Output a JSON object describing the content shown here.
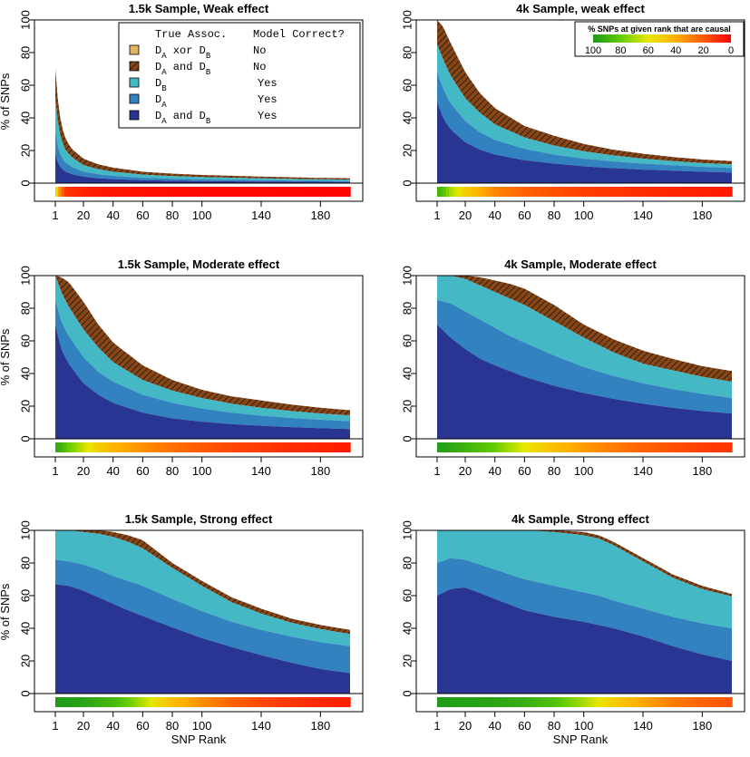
{
  "chart_data": {
    "type": "area",
    "colors": {
      "xor_no": "#e3b461",
      "and_no": "#8b4513",
      "b_yes": "#45b8c6",
      "a_yes": "#3282c0",
      "ab_yes": "#283593",
      "hatch": "#222222"
    },
    "legend": {
      "header_assoc": "True Assoc.",
      "header_correct": "Model Correct?",
      "entries": [
        {
          "key": "xor_no",
          "assoc_parts": [
            "D",
            "A",
            " xor ",
            "D",
            "B"
          ],
          "correct": "No"
        },
        {
          "key": "and_no",
          "assoc_parts": [
            "D",
            "A",
            " and ",
            "D",
            "B"
          ],
          "correct": "No"
        },
        {
          "key": "b_yes",
          "assoc_parts": [
            "D",
            "B"
          ],
          "correct": "Yes"
        },
        {
          "key": "a_yes",
          "assoc_parts": [
            "D",
            "A"
          ],
          "correct": "Yes"
        },
        {
          "key": "ab_yes",
          "assoc_parts": [
            "D",
            "A",
            " and ",
            "D",
            "B"
          ],
          "correct": "Yes"
        }
      ]
    },
    "colorbar": {
      "title": "% SNPs at given rank that are causal",
      "ticks": [
        "100",
        "80",
        "60",
        "40",
        "20",
        "0"
      ]
    },
    "x_ticks": [
      1,
      20,
      40,
      60,
      80,
      100,
      140,
      180
    ],
    "x_range": [
      1,
      200
    ],
    "y_ticks": [
      0,
      20,
      40,
      60,
      80,
      100
    ],
    "y_range": [
      0,
      100
    ],
    "x_label": "SNP Rank",
    "y_label": "% of SNPs",
    "panels": [
      {
        "title": "1.5k Sample, Weak effect",
        "x": [
          1,
          3,
          5,
          8,
          12,
          20,
          30,
          40,
          60,
          80,
          100,
          140,
          180,
          200
        ],
        "total": [
          70,
          48,
          36,
          27,
          21,
          15,
          11.5,
          9.5,
          7,
          5.8,
          5,
          4,
          3.2,
          3
        ],
        "b_top": [
          52,
          35,
          27,
          20,
          16,
          11,
          8.5,
          7,
          5.2,
          4.3,
          3.7,
          2.9,
          2.3,
          2.2
        ],
        "a_top": [
          32,
          21,
          16,
          12.5,
          10,
          7,
          5.5,
          4.5,
          3.3,
          2.7,
          2.3,
          1.8,
          1.4,
          1.3
        ],
        "ab_top": [
          18,
          12,
          9,
          7,
          5.5,
          4,
          3,
          2.5,
          1.8,
          1.5,
          1.2,
          1,
          0.8,
          0.7
        ],
        "causal": [
          70,
          40,
          25,
          12,
          10,
          8,
          6,
          5,
          4,
          3,
          2,
          2,
          1,
          1
        ]
      },
      {
        "title": "4k Sample, weak effect",
        "x": [
          1,
          5,
          10,
          20,
          30,
          40,
          60,
          80,
          100,
          120,
          140,
          160,
          180,
          200
        ],
        "total": [
          100,
          96,
          86,
          68,
          55,
          46,
          35,
          29,
          24,
          20.5,
          18,
          16,
          14.5,
          13.5
        ],
        "b_top": [
          85,
          76,
          66,
          52,
          43,
          36,
          28,
          23,
          19.5,
          17,
          15,
          13.5,
          12.3,
          11.5
        ],
        "a_top": [
          68,
          58,
          49,
          38,
          31,
          26.5,
          21,
          17.5,
          15,
          13.3,
          12,
          11,
          10,
          9.3
        ],
        "ab_top": [
          50,
          40,
          33,
          25,
          20.5,
          17.5,
          14,
          12,
          10.3,
          9.2,
          8.3,
          7.7,
          7,
          6.5
        ],
        "causal": [
          90,
          85,
          70,
          50,
          40,
          30,
          22,
          18,
          14,
          12,
          10,
          8,
          7,
          6
        ]
      },
      {
        "title": "1.5k Sample, Moderate effect",
        "x": [
          1,
          5,
          10,
          20,
          30,
          40,
          60,
          80,
          100,
          120,
          140,
          160,
          180,
          200
        ],
        "total": [
          100,
          99,
          96,
          84,
          70,
          59,
          45,
          36,
          30,
          26,
          23.5,
          21,
          19,
          17.5
        ],
        "b_top": [
          100,
          90,
          81,
          67,
          56,
          47,
          36,
          29.5,
          25,
          21.5,
          19,
          17,
          15.5,
          14.3
        ],
        "a_top": [
          85,
          72,
          63,
          50,
          41,
          35,
          27,
          22,
          18.5,
          16,
          14.2,
          12.8,
          11.7,
          10.8
        ],
        "ab_top": [
          70,
          55,
          46,
          34,
          27,
          22,
          16,
          12.5,
          10.5,
          9,
          8,
          7.2,
          6.5,
          6
        ],
        "causal": [
          95,
          90,
          80,
          65,
          50,
          42,
          32,
          25,
          20,
          16,
          13,
          10,
          8,
          6
        ]
      },
      {
        "title": "4k Sample, Moderate effect",
        "x": [
          1,
          10,
          20,
          30,
          40,
          50,
          60,
          80,
          100,
          120,
          140,
          160,
          180,
          200
        ],
        "total": [
          100,
          100,
          100,
          99,
          97,
          95,
          92,
          82,
          70,
          61,
          54,
          49,
          44.5,
          41.5
        ],
        "b_top": [
          100,
          100,
          98,
          94,
          90,
          86,
          82,
          72,
          62,
          53,
          46,
          42,
          38,
          35
        ],
        "a_top": [
          85,
          83,
          78,
          73,
          68,
          63,
          59,
          51,
          44,
          38.5,
          34,
          30.5,
          27.5,
          25
        ],
        "ab_top": [
          70,
          62,
          55,
          49,
          45,
          41.5,
          38,
          32.5,
          28,
          24.5,
          21.5,
          19,
          17,
          15.5
        ],
        "causal": [
          98,
          95,
          90,
          85,
          80,
          70,
          60,
          45,
          35,
          28,
          22,
          18,
          14,
          12
        ]
      },
      {
        "title": "1.5k Sample, Strong effect",
        "x": [
          1,
          10,
          20,
          30,
          40,
          50,
          60,
          70,
          80,
          100,
          120,
          140,
          160,
          180,
          200
        ],
        "total": [
          100,
          100,
          100,
          100,
          99,
          97,
          94,
          87,
          80,
          69,
          59,
          52,
          46,
          42,
          39
        ],
        "b_top": [
          100,
          100,
          99,
          98,
          96,
          93,
          89,
          83,
          77,
          66,
          56,
          49,
          43.5,
          39.5,
          36.5
        ],
        "a_top": [
          82,
          81,
          79,
          76,
          72,
          69,
          66,
          62,
          58,
          50.5,
          44,
          39,
          35,
          31.5,
          29
        ],
        "ab_top": [
          67,
          66,
          63,
          59,
          55,
          51,
          47.5,
          44,
          40.5,
          34,
          28.5,
          23.5,
          19,
          15,
          12.5
        ],
        "causal": [
          99,
          98,
          96,
          92,
          88,
          80,
          68,
          55,
          45,
          32,
          22,
          16,
          12,
          9,
          7
        ]
      },
      {
        "title": "4k Sample, Strong effect",
        "x": [
          1,
          10,
          20,
          40,
          60,
          80,
          100,
          110,
          120,
          140,
          160,
          180,
          200
        ],
        "total": [
          100,
          100,
          100,
          100,
          100,
          100,
          99,
          97,
          93,
          83,
          73,
          66,
          61
        ],
        "b_top": [
          100,
          100,
          100,
          100,
          100,
          99,
          97,
          95,
          91,
          81,
          71,
          64,
          59.5
        ],
        "a_top": [
          80,
          83,
          82,
          76,
          70,
          66,
          62,
          60,
          57,
          52,
          47,
          43,
          40
        ],
        "ab_top": [
          60,
          64,
          65,
          58,
          51,
          47,
          44,
          42,
          40,
          35,
          29,
          24,
          20
        ],
        "causal": [
          99,
          98,
          97,
          96,
          92,
          85,
          70,
          60,
          50,
          38,
          28,
          22,
          18
        ]
      }
    ]
  }
}
